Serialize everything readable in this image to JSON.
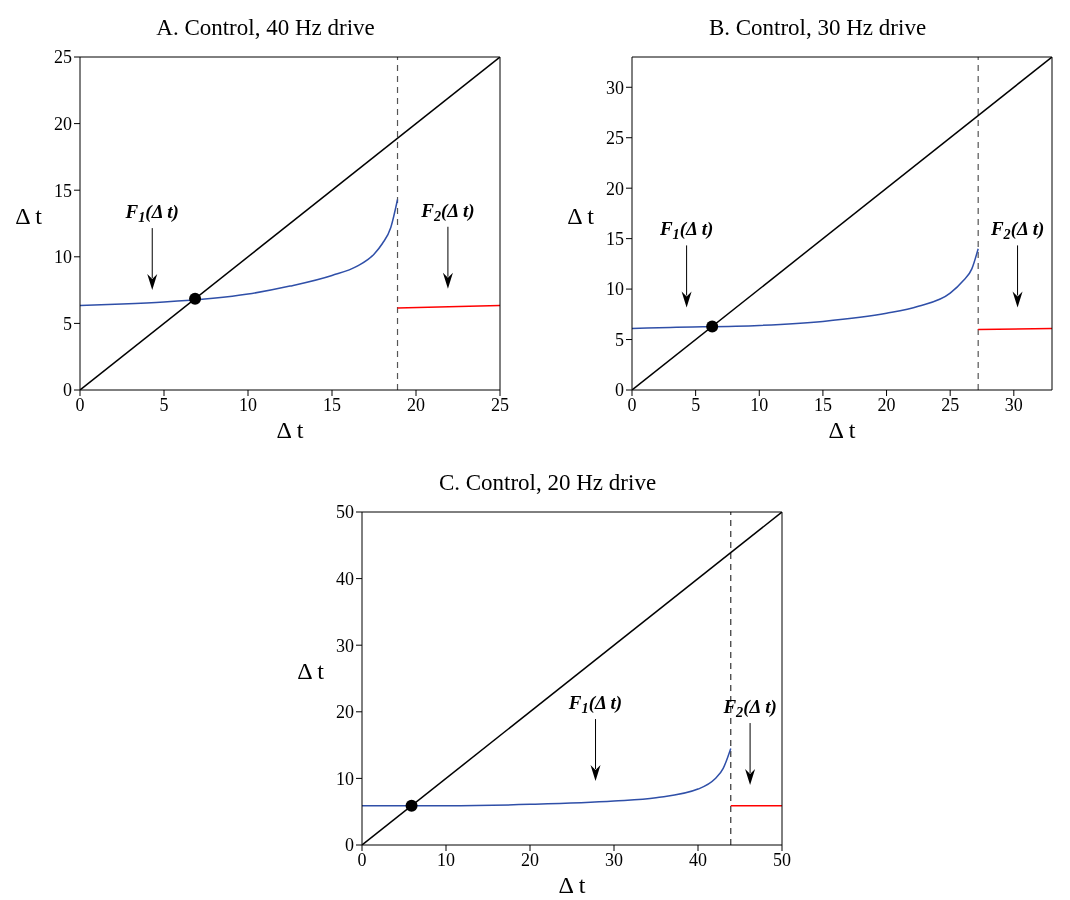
{
  "chart_data": [
    {
      "type": "line",
      "title": "A. Control, 40 Hz drive",
      "xlabel": "Δ t",
      "ylabel": "Δ t",
      "xlim": [
        0,
        25
      ],
      "ylim": [
        0,
        25
      ],
      "xticks": [
        0,
        5,
        10,
        15,
        20,
        25
      ],
      "yticks": [
        0,
        5,
        10,
        15,
        20,
        25
      ],
      "series": [
        {
          "color": "#000000",
          "x": [
            0,
            25
          ],
          "values": [
            0,
            25
          ]
        },
        {
          "color": "#2f4fa8",
          "x": [
            0,
            2.5,
            5,
            10,
            12.5,
            15,
            16.5,
            17.5,
            18,
            18.5,
            18.9
          ],
          "values": [
            6.35,
            6.45,
            6.6,
            7.2,
            7.8,
            8.6,
            9.3,
            10.2,
            11.0,
            12.2,
            14.3
          ]
        },
        {
          "color": "#ff0000",
          "x": [
            18.9,
            25
          ],
          "values": [
            6.15,
            6.35
          ]
        },
        {
          "type": "scatter",
          "marker": "circle",
          "color": "#000000",
          "x": [
            6.85
          ],
          "values": [
            6.85
          ]
        }
      ],
      "ref_lines": [
        {
          "axis": "x",
          "value": 18.9,
          "color": "#555555",
          "line_style": "dashed"
        }
      ],
      "annotations": [
        "F$_{1}$(Δ t)",
        "F$_{2}$(Δ t)"
      ]
    },
    {
      "type": "line",
      "title": "B. Control, 30 Hz drive",
      "xlabel": "Δ t",
      "ylabel": "Δ t",
      "xlim": [
        0,
        33
      ],
      "ylim": [
        0,
        33
      ],
      "xticks": [
        0,
        5,
        10,
        15,
        20,
        25,
        30
      ],
      "yticks": [
        0,
        5,
        10,
        15,
        20,
        25,
        30
      ],
      "series": [
        {
          "color": "#000000",
          "x": [
            0,
            33
          ],
          "values": [
            0,
            33
          ]
        },
        {
          "color": "#2f4fa8",
          "x": [
            0,
            3,
            10,
            15,
            20,
            22.5,
            25,
            26,
            26.7,
            27.2
          ],
          "values": [
            6.1,
            6.2,
            6.4,
            6.8,
            7.6,
            8.3,
            9.6,
            10.8,
            12.0,
            14.0
          ]
        },
        {
          "color": "#ff0000",
          "x": [
            27.2,
            33
          ],
          "values": [
            6.0,
            6.1
          ]
        },
        {
          "type": "scatter",
          "marker": "circle",
          "color": "#000000",
          "x": [
            6.3
          ],
          "values": [
            6.3
          ]
        }
      ],
      "ref_lines": [
        {
          "axis": "x",
          "value": 27.2,
          "color": "#555555",
          "line_style": "dashed"
        }
      ],
      "annotations": [
        "F$_{1}$(Δ t)",
        "F$_{2}$(Δ t)"
      ]
    },
    {
      "type": "line",
      "title": "C. Control, 20 Hz drive",
      "xlabel": "Δ t",
      "ylabel": "Δ t",
      "xlim": [
        0,
        50
      ],
      "ylim": [
        0,
        50
      ],
      "xticks": [
        0,
        10,
        20,
        30,
        40,
        50
      ],
      "yticks": [
        0,
        10,
        20,
        30,
        40,
        50
      ],
      "series": [
        {
          "color": "#000000",
          "x": [
            0,
            50
          ],
          "values": [
            0,
            50
          ]
        },
        {
          "color": "#2f4fa8",
          "x": [
            0,
            5.9,
            10,
            20,
            30,
            35,
            40,
            42,
            43,
            43.9
          ],
          "values": [
            5.9,
            5.9,
            5.9,
            6.1,
            6.6,
            7.1,
            8.4,
            9.9,
            11.5,
            14.5
          ]
        },
        {
          "color": "#ff0000",
          "x": [
            43.9,
            50
          ],
          "values": [
            5.9,
            5.9
          ]
        },
        {
          "type": "scatter",
          "marker": "circle",
          "color": "#000000",
          "x": [
            5.9
          ],
          "values": [
            5.9
          ]
        }
      ],
      "ref_lines": [
        {
          "axis": "x",
          "value": 43.9,
          "color": "#333333",
          "line_style": "dashed"
        }
      ],
      "annotations": [
        "F$_{1}$(Δ t)",
        "F$_{2}$(Δ t)"
      ]
    }
  ]
}
